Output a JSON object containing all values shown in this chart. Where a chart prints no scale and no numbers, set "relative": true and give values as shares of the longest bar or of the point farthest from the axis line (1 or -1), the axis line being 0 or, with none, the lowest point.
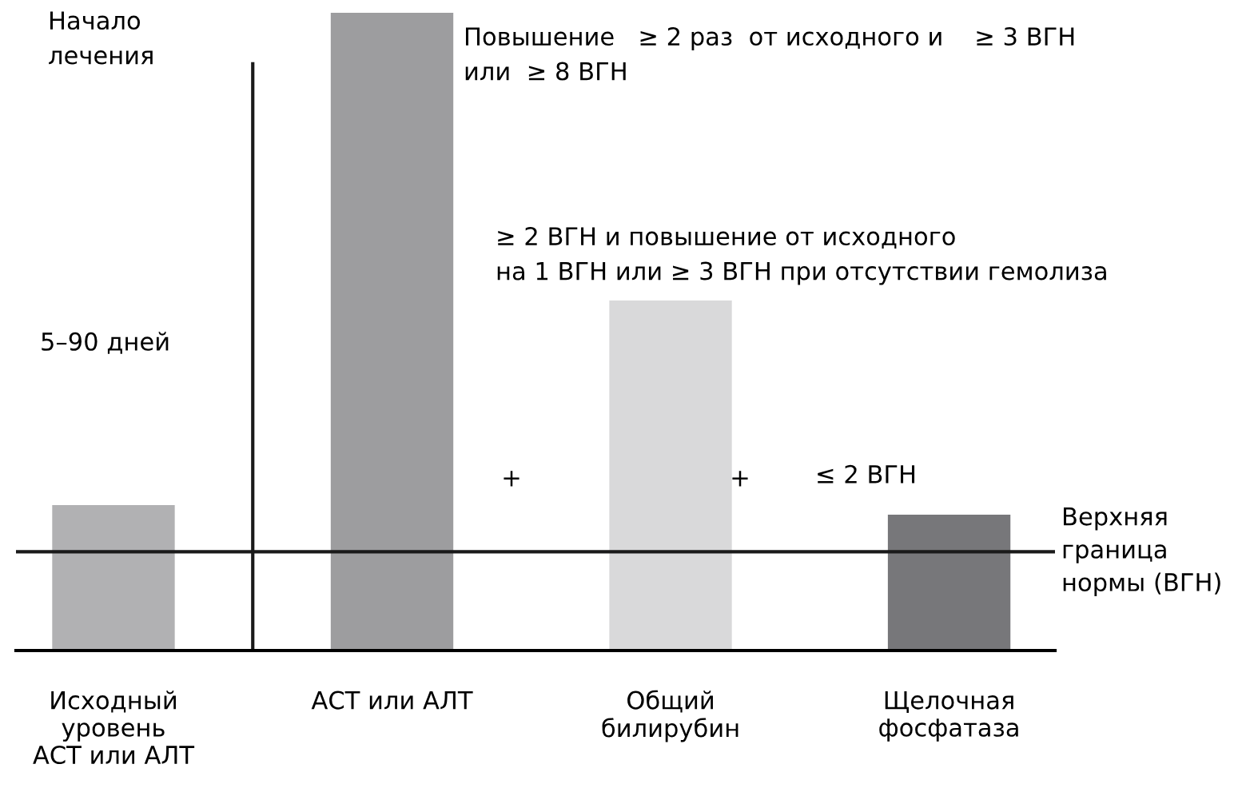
{
  "chart_data": {
    "type": "bar",
    "relative": true,
    "categories": [
      "Исходный\nуровень\nАСТ или АЛТ",
      "АСТ или АЛТ",
      "Общий\nбилирубин",
      "Щелочная\nфосфатаза"
    ],
    "values": [
      0.228,
      1,
      0.549,
      0.213
    ],
    "colors": [
      "#b1b1b3",
      "#9d9d9f",
      "#d9d9da",
      "#77777a"
    ],
    "ref_lines": [
      {
        "axis": "y",
        "value": 0.155,
        "label": "Верхняя\nграница\nнормы (ВГН)",
        "color": "#1a1a1a"
      }
    ],
    "annotations": [
      "Начало\nлечения",
      "5–90 дней",
      "Повышение   ≥ 2 раз  от исходного и    ≥ 3 ВГН\nили  ≥ 8 ВГН",
      "≥ 2 ВГН и повышение от исходного\nна 1 ВГН или ≥ 3 ВГН при отсутствии гемолиза",
      "+",
      "+",
      "≤ 2 ВГН"
    ],
    "grid": false,
    "legend": false
  }
}
